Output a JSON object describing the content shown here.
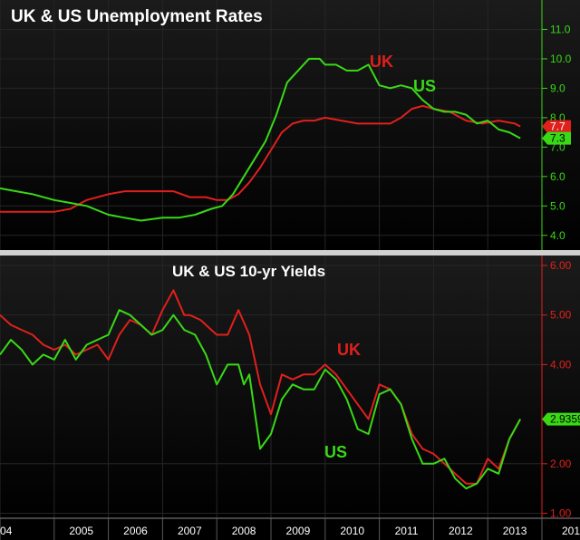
{
  "colors": {
    "uk": "#e0201c",
    "us": "#39d916",
    "background": "#000000",
    "divider": "#d0d0d0",
    "grid": "#262626"
  },
  "chart_data": [
    {
      "type": "line",
      "title": "UK & US Unemployment Rates",
      "y_axis_side": "right",
      "y_axis_color": "#39d916",
      "ylim": [
        3.5,
        12.0
      ],
      "yticks": [
        "4.0",
        "5.0",
        "6.0",
        "7.0",
        "8.0",
        "9.0",
        "10.0",
        "11.0"
      ],
      "xlim": [
        2004.0,
        2014.0
      ],
      "series": [
        {
          "name": "UK",
          "color": "#e0201c",
          "last_value_label": "7.7",
          "x": [
            2004.0,
            2004.5,
            2005.0,
            2005.3,
            2005.6,
            2006.0,
            2006.3,
            2006.6,
            2007.0,
            2007.2,
            2007.5,
            2007.8,
            2008.0,
            2008.2,
            2008.4,
            2008.6,
            2008.8,
            2009.0,
            2009.2,
            2009.4,
            2009.6,
            2009.8,
            2010.0,
            2010.3,
            2010.6,
            2010.9,
            2011.2,
            2011.4,
            2011.6,
            2011.8,
            2012.0,
            2012.3,
            2012.6,
            2012.9,
            2013.2,
            2013.5,
            2013.6
          ],
          "values": [
            4.8,
            4.8,
            4.8,
            4.9,
            5.2,
            5.4,
            5.5,
            5.5,
            5.5,
            5.5,
            5.3,
            5.3,
            5.2,
            5.2,
            5.4,
            5.8,
            6.3,
            6.9,
            7.5,
            7.8,
            7.9,
            7.9,
            8.0,
            7.9,
            7.8,
            7.8,
            7.8,
            8.0,
            8.3,
            8.4,
            8.3,
            8.2,
            7.9,
            7.8,
            7.9,
            7.8,
            7.7
          ]
        },
        {
          "name": "US",
          "color": "#39d916",
          "last_value_label": "7.3",
          "x": [
            2004.0,
            2004.3,
            2004.6,
            2005.0,
            2005.3,
            2005.6,
            2006.0,
            2006.3,
            2006.6,
            2007.0,
            2007.3,
            2007.6,
            2007.9,
            2008.1,
            2008.3,
            2008.5,
            2008.7,
            2008.9,
            2009.1,
            2009.3,
            2009.5,
            2009.7,
            2009.9,
            2010.0,
            2010.2,
            2010.4,
            2010.6,
            2010.8,
            2011.0,
            2011.2,
            2011.4,
            2011.6,
            2011.8,
            2012.0,
            2012.2,
            2012.4,
            2012.6,
            2012.8,
            2013.0,
            2013.2,
            2013.4,
            2013.6
          ],
          "values": [
            5.6,
            5.5,
            5.4,
            5.2,
            5.1,
            5.0,
            4.7,
            4.6,
            4.5,
            4.6,
            4.6,
            4.7,
            4.9,
            5.0,
            5.4,
            6.0,
            6.6,
            7.2,
            8.1,
            9.2,
            9.6,
            10.0,
            10.0,
            9.8,
            9.8,
            9.6,
            9.6,
            9.8,
            9.1,
            9.0,
            9.1,
            9.0,
            8.6,
            8.3,
            8.2,
            8.2,
            8.1,
            7.8,
            7.9,
            7.6,
            7.5,
            7.3
          ]
        }
      ]
    },
    {
      "type": "line",
      "title": "UK & US 10-yr Yields",
      "y_axis_side": "right",
      "y_axis_color": "#e0201c",
      "ylim": [
        0.9,
        6.2
      ],
      "yticks": [
        "1.00",
        "2.00",
        "4.00",
        "5.00",
        "6.00"
      ],
      "xlim": [
        2004.0,
        2014.0
      ],
      "xticks": [
        "2005",
        "2006",
        "2007",
        "2008",
        "2009",
        "2010",
        "2011",
        "2012",
        "2013"
      ],
      "edge_tick_labels": [
        "04",
        "201"
      ],
      "series": [
        {
          "name": "UK",
          "color": "#e0201c",
          "last_value_label": "",
          "x": [
            2004.0,
            2004.2,
            2004.4,
            2004.6,
            2004.8,
            2005.0,
            2005.2,
            2005.4,
            2005.6,
            2005.8,
            2006.0,
            2006.2,
            2006.4,
            2006.6,
            2006.8,
            2007.0,
            2007.2,
            2007.4,
            2007.5,
            2007.7,
            2007.9,
            2008.0,
            2008.2,
            2008.4,
            2008.6,
            2008.8,
            2009.0,
            2009.2,
            2009.4,
            2009.6,
            2009.8,
            2010.0,
            2010.2,
            2010.4,
            2010.6,
            2010.8,
            2011.0,
            2011.2,
            2011.4,
            2011.6,
            2011.8,
            2012.0,
            2012.2,
            2012.4,
            2012.6,
            2012.8,
            2013.0,
            2013.2,
            2013.4,
            2013.6
          ],
          "values": [
            5.0,
            4.8,
            4.7,
            4.6,
            4.4,
            4.3,
            4.4,
            4.2,
            4.3,
            4.4,
            4.1,
            4.6,
            4.9,
            4.8,
            4.6,
            5.1,
            5.5,
            5.0,
            5.0,
            4.9,
            4.7,
            4.6,
            4.6,
            5.1,
            4.6,
            3.6,
            3.0,
            3.8,
            3.7,
            3.8,
            3.8,
            4.0,
            3.8,
            3.5,
            3.2,
            2.9,
            3.6,
            3.5,
            3.2,
            2.6,
            2.3,
            2.2,
            2.0,
            1.8,
            1.6,
            1.6,
            2.1,
            1.9,
            2.5,
            2.9
          ]
        },
        {
          "name": "US",
          "color": "#39d916",
          "last_value_label": "2.9359",
          "x": [
            2004.0,
            2004.2,
            2004.4,
            2004.6,
            2004.8,
            2005.0,
            2005.2,
            2005.4,
            2005.6,
            2005.8,
            2006.0,
            2006.2,
            2006.4,
            2006.6,
            2006.8,
            2007.0,
            2007.2,
            2007.4,
            2007.6,
            2007.8,
            2008.0,
            2008.2,
            2008.4,
            2008.5,
            2008.6,
            2008.8,
            2009.0,
            2009.2,
            2009.4,
            2009.6,
            2009.8,
            2010.0,
            2010.2,
            2010.4,
            2010.6,
            2010.8,
            2011.0,
            2011.2,
            2011.4,
            2011.6,
            2011.8,
            2012.0,
            2012.2,
            2012.4,
            2012.6,
            2012.8,
            2013.0,
            2013.2,
            2013.4,
            2013.6
          ],
          "values": [
            4.2,
            4.5,
            4.3,
            4.0,
            4.2,
            4.1,
            4.5,
            4.1,
            4.4,
            4.5,
            4.6,
            5.1,
            5.0,
            4.8,
            4.6,
            4.7,
            5.0,
            4.7,
            4.6,
            4.2,
            3.6,
            4.0,
            4.0,
            3.6,
            3.8,
            2.3,
            2.6,
            3.3,
            3.6,
            3.5,
            3.5,
            3.9,
            3.7,
            3.3,
            2.7,
            2.6,
            3.4,
            3.5,
            3.2,
            2.5,
            2.0,
            2.0,
            2.1,
            1.7,
            1.5,
            1.6,
            1.9,
            1.8,
            2.5,
            2.9
          ]
        }
      ]
    }
  ]
}
